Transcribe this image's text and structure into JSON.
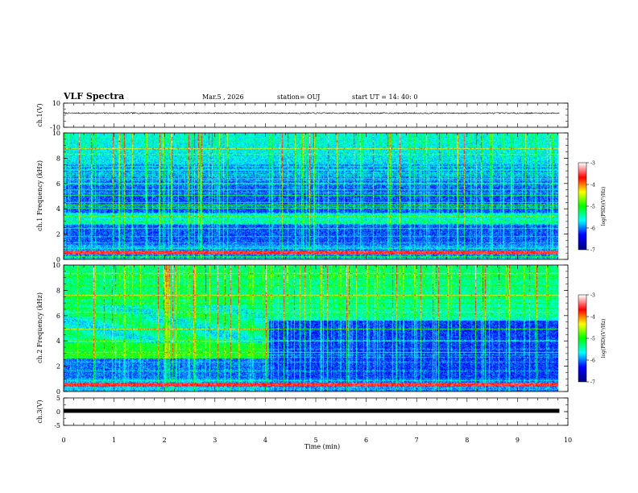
{
  "header": {
    "title": "VLF Spectra",
    "date": "Mar.5 , 2026",
    "station": "station= OUJ",
    "start": "start UT = 14: 40: 0"
  },
  "chart_data": [
    {
      "type": "line",
      "panel": "ch1-waveform",
      "ylabel": "ch.1(V)",
      "ylim": [
        -10,
        10
      ],
      "yticks": [
        "10",
        "-10"
      ],
      "xlim": [
        0,
        10
      ],
      "approx_level": 1.7,
      "approx_noise_amplitude": 0.5,
      "data_end_min": 9.83
    },
    {
      "type": "heatmap",
      "panel": "ch1-spectrogram",
      "ylabel": "ch.1 Frequency (kHz)",
      "yticks": [
        "0",
        "2",
        "4",
        "6",
        "8",
        "10"
      ],
      "ylim": [
        0,
        10
      ],
      "xlim": [
        0,
        10
      ],
      "colorbar": {
        "label": "log(PSD)(V²/Hz)",
        "ticks": [
          "-3",
          "-4",
          "-5",
          "-6",
          "-7"
        ],
        "range": [
          -7,
          -3
        ],
        "colors": [
          "#000080",
          "#0000ff",
          "#00ffff",
          "#00ff00",
          "#ffff00",
          "#ff0000",
          "#ffffff"
        ]
      }
    },
    {
      "type": "heatmap",
      "panel": "ch2-spectrogram",
      "ylabel": "ch.2 Frequency (kHz)",
      "yticks": [
        "0",
        "2",
        "4",
        "6",
        "8",
        "10"
      ],
      "ylim": [
        0,
        10
      ],
      "xlim": [
        0,
        10
      ],
      "colorbar": {
        "label": "log(PSD)(V²/Hz)",
        "ticks": [
          "-3",
          "-4",
          "-5",
          "-6",
          "-7"
        ],
        "range": [
          -7,
          -3
        ]
      }
    },
    {
      "type": "line",
      "panel": "ch3-waveform",
      "ylabel": "ch.3(V)",
      "ylim": [
        -5,
        5
      ],
      "yticks": [
        "5",
        "0",
        "-5"
      ],
      "xlim": [
        0,
        10
      ],
      "approx_level": 0.3
    }
  ],
  "xaxis": {
    "label": "Time (min)",
    "ticks": [
      "0",
      "1",
      "2",
      "3",
      "4",
      "5",
      "6",
      "7",
      "8",
      "9",
      "10"
    ]
  }
}
